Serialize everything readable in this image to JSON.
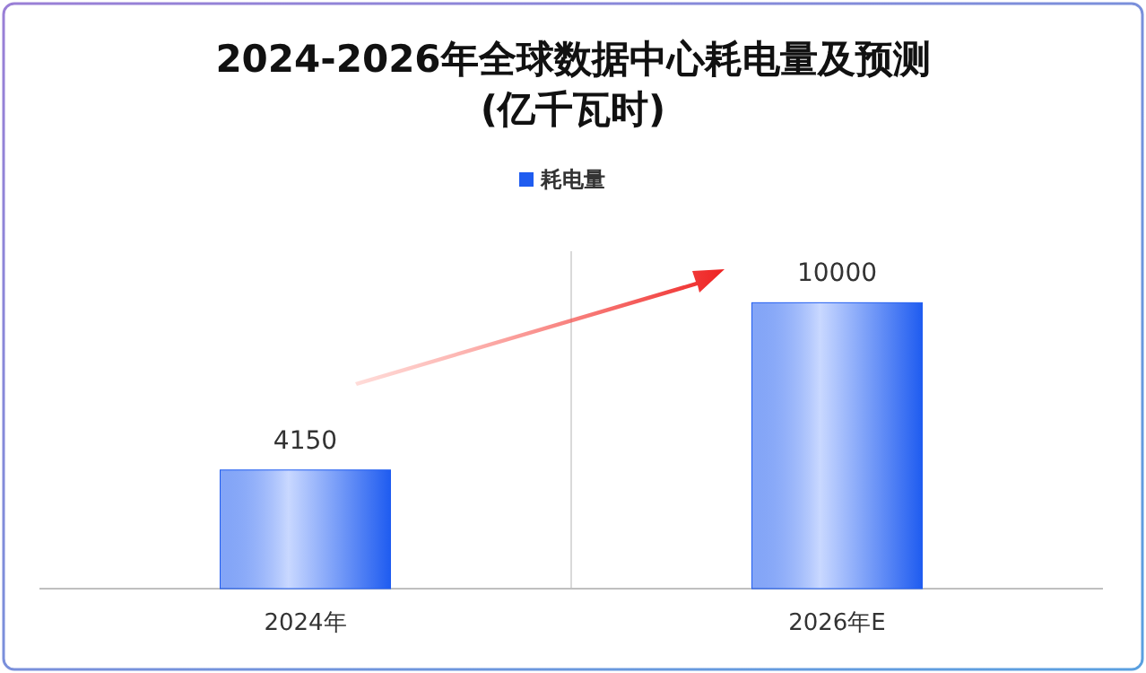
{
  "chart_data": {
    "type": "bar",
    "title": "2024-2026年全球数据中心耗电量及预测",
    "subtitle": "(亿千瓦时)",
    "categories": [
      "2024年",
      "2026年E"
    ],
    "series": [
      {
        "name": "耗电量",
        "color": "#1f5cf0",
        "values": [
          4150,
          10000
        ]
      }
    ],
    "data_labels": true,
    "legend": "top",
    "grid": "x"
  }
}
